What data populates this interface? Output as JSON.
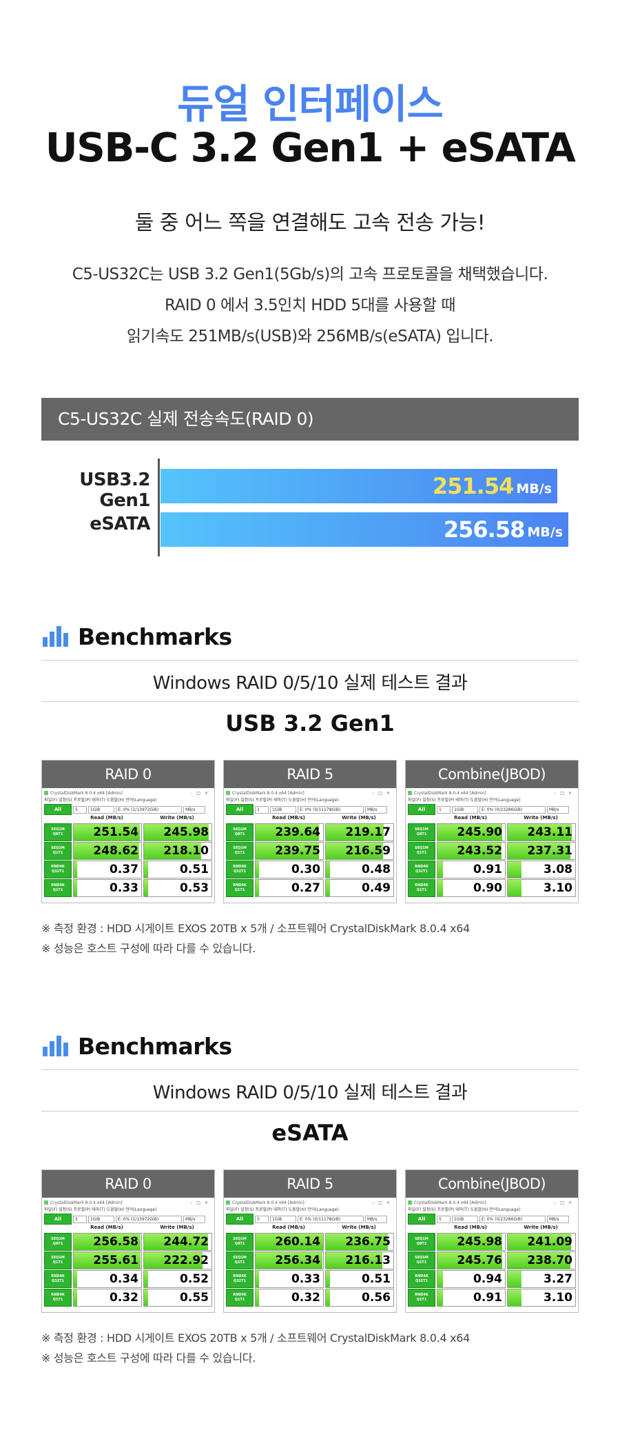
{
  "hero": {
    "title_line1": "듀얼 인터페이스",
    "title_line2": "USB-C 3.2 Gen1 + eSATA",
    "subtitle": "둘 중 어느 쪽을 연결해도 고속 전송 가능!",
    "desc_line1": "C5-US32C는 USB 3.2 Gen1(5Gb/s)의 고속 프로토콜을 채택했습니다.",
    "desc_line2": "RAID 0 에서 3.5인치 HDD 5대를 사용할 때",
    "desc_line3": "읽기속도 251MB/s(USB)와 256MB/s(eSATA) 입니다."
  },
  "speed": {
    "header": "C5-US32C 실제 전송속도(RAID 0)",
    "unit": "MB/s",
    "bars": [
      {
        "label": "USB3.2 Gen1",
        "value": "251.54",
        "value_color": "#f3e05a"
      },
      {
        "label": "eSATA",
        "value": "256.58",
        "value_color": "#ffffff"
      }
    ]
  },
  "benchmarks": [
    {
      "title": "Benchmarks",
      "subtitle": "Windows RAID 0/5/10 실제 테스트 결과",
      "interface": "USB 3.2 Gen1",
      "panels": [
        {
          "name": "RAID 0",
          "drive": "E: 0% (1/13972GiB)",
          "count": "5",
          "read": [
            "251.54",
            "248.62",
            "0.37",
            "0.33"
          ],
          "write": [
            "245.98",
            "218.10",
            "0.51",
            "0.53"
          ],
          "read_fill": [
            0.98,
            0.97,
            0.05,
            0.05
          ],
          "write_fill": [
            0.96,
            0.85,
            0.06,
            0.06
          ]
        },
        {
          "name": "RAID 5",
          "drive": "E: 0% (0/11178GiB)",
          "count": "1",
          "read": [
            "239.64",
            "239.75",
            "0.30",
            "0.27"
          ],
          "write": [
            "219.17",
            "216.59",
            "0.48",
            "0.49"
          ],
          "read_fill": [
            0.94,
            0.94,
            0.05,
            0.05
          ],
          "write_fill": [
            0.86,
            0.85,
            0.06,
            0.06
          ]
        },
        {
          "name": "Combine(JBOD)",
          "drive": "E: 0% (0/23286GiB)",
          "count": "1",
          "read": [
            "245.90",
            "243.52",
            "0.91",
            "0.90"
          ],
          "write": [
            "243.11",
            "237.31",
            "3.08",
            "3.10"
          ],
          "read_fill": [
            0.96,
            0.95,
            0.08,
            0.08
          ],
          "write_fill": [
            0.95,
            0.93,
            0.2,
            0.2
          ]
        }
      ],
      "note1": "※ 측정 환경 : HDD   시게이트 EXOS 20TB x 5개  / 소프트웨어   CrystalDiskMark 8.0.4 x64",
      "note2": "※ 성능은 호스트 구성에 따라 다를 수 있습니다."
    },
    {
      "title": "Benchmarks",
      "subtitle": "Windows RAID 0/5/10 실제 테스트 결과",
      "interface": "eSATA",
      "panels": [
        {
          "name": "RAID 0",
          "drive": "E: 0% (1/13972GiB)",
          "count": "5",
          "read": [
            "256.58",
            "255.61",
            "0.34",
            "0.32"
          ],
          "write": [
            "244.72",
            "222.92",
            "0.52",
            "0.55"
          ],
          "read_fill": [
            0.99,
            0.99,
            0.05,
            0.05
          ],
          "write_fill": [
            0.95,
            0.87,
            0.06,
            0.06
          ]
        },
        {
          "name": "RAID 5",
          "drive": "E: 0% (0/11178GiB)",
          "count": "5",
          "read": [
            "260.14",
            "256.34",
            "0.33",
            "0.32"
          ],
          "write": [
            "236.75",
            "216.13",
            "0.51",
            "0.56"
          ],
          "read_fill": [
            1.0,
            0.99,
            0.05,
            0.05
          ],
          "write_fill": [
            0.92,
            0.84,
            0.06,
            0.06
          ]
        },
        {
          "name": "Combine(JBOD)",
          "drive": "E: 0% (0/23286GiB)",
          "count": "5",
          "read": [
            "245.98",
            "245.76",
            "0.94",
            "0.91"
          ],
          "write": [
            "241.09",
            "238.70",
            "3.27",
            "3.10"
          ],
          "read_fill": [
            0.96,
            0.96,
            0.08,
            0.08
          ],
          "write_fill": [
            0.94,
            0.93,
            0.2,
            0.2
          ]
        }
      ],
      "note1": "※ 측정 환경 : HDD   시게이트 EXOS 20TB x 5개  / 소프트웨어   CrystalDiskMark 8.0.4 x64",
      "note2": "※ 성능은 호스트 구성에 따라 다를 수 있습니다."
    }
  ],
  "cdm": {
    "window_title": "CrystalDiskMark 8.0.4 x64 [Admin]",
    "menu": "파일(F)  설정(S)  프로필(P)  테마(T)  도움말(H)  언어(Language)",
    "all": "All",
    "size": "1GiB",
    "unit": "MB/s",
    "read_header": "Read (MB/s)",
    "write_header": "Write (MB/s)",
    "rows": [
      {
        "l1": "SEQ1M",
        "l2": "Q8T1"
      },
      {
        "l1": "SEQ1M",
        "l2": "Q1T1"
      },
      {
        "l1": "RND4K",
        "l2": "Q32T1"
      },
      {
        "l1": "RND4K",
        "l2": "Q1T1"
      }
    ]
  }
}
